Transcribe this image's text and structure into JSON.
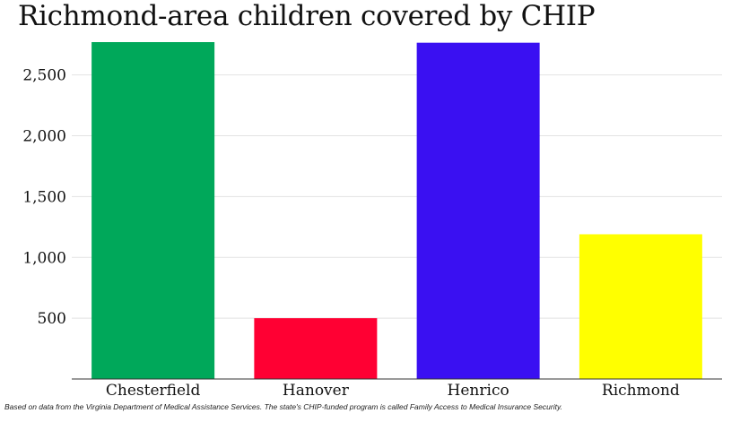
{
  "chart_data": {
    "type": "bar",
    "title": "Richmond-area children covered by CHIP",
    "categories": [
      "Chesterfield",
      "Hanover",
      "Henrico",
      "Richmond"
    ],
    "values": [
      2770,
      500,
      2765,
      1190
    ],
    "colors": [
      "#00a85a",
      "#ff0033",
      "#3a10f2",
      "#ffff00"
    ],
    "ylim": [
      0,
      2770
    ],
    "yticks": [
      500,
      1000,
      1500,
      2000,
      2500
    ],
    "ytick_labels": [
      "500",
      "1,000",
      "1,500",
      "2,000",
      "2,500"
    ],
    "xlabel": "",
    "ylabel": "",
    "grid": true
  },
  "footnote": "Based on data from the Virginia Department of Medical Assistance Services. The state's CHIP-funded program is called Family Access to Medical Insurance Security."
}
